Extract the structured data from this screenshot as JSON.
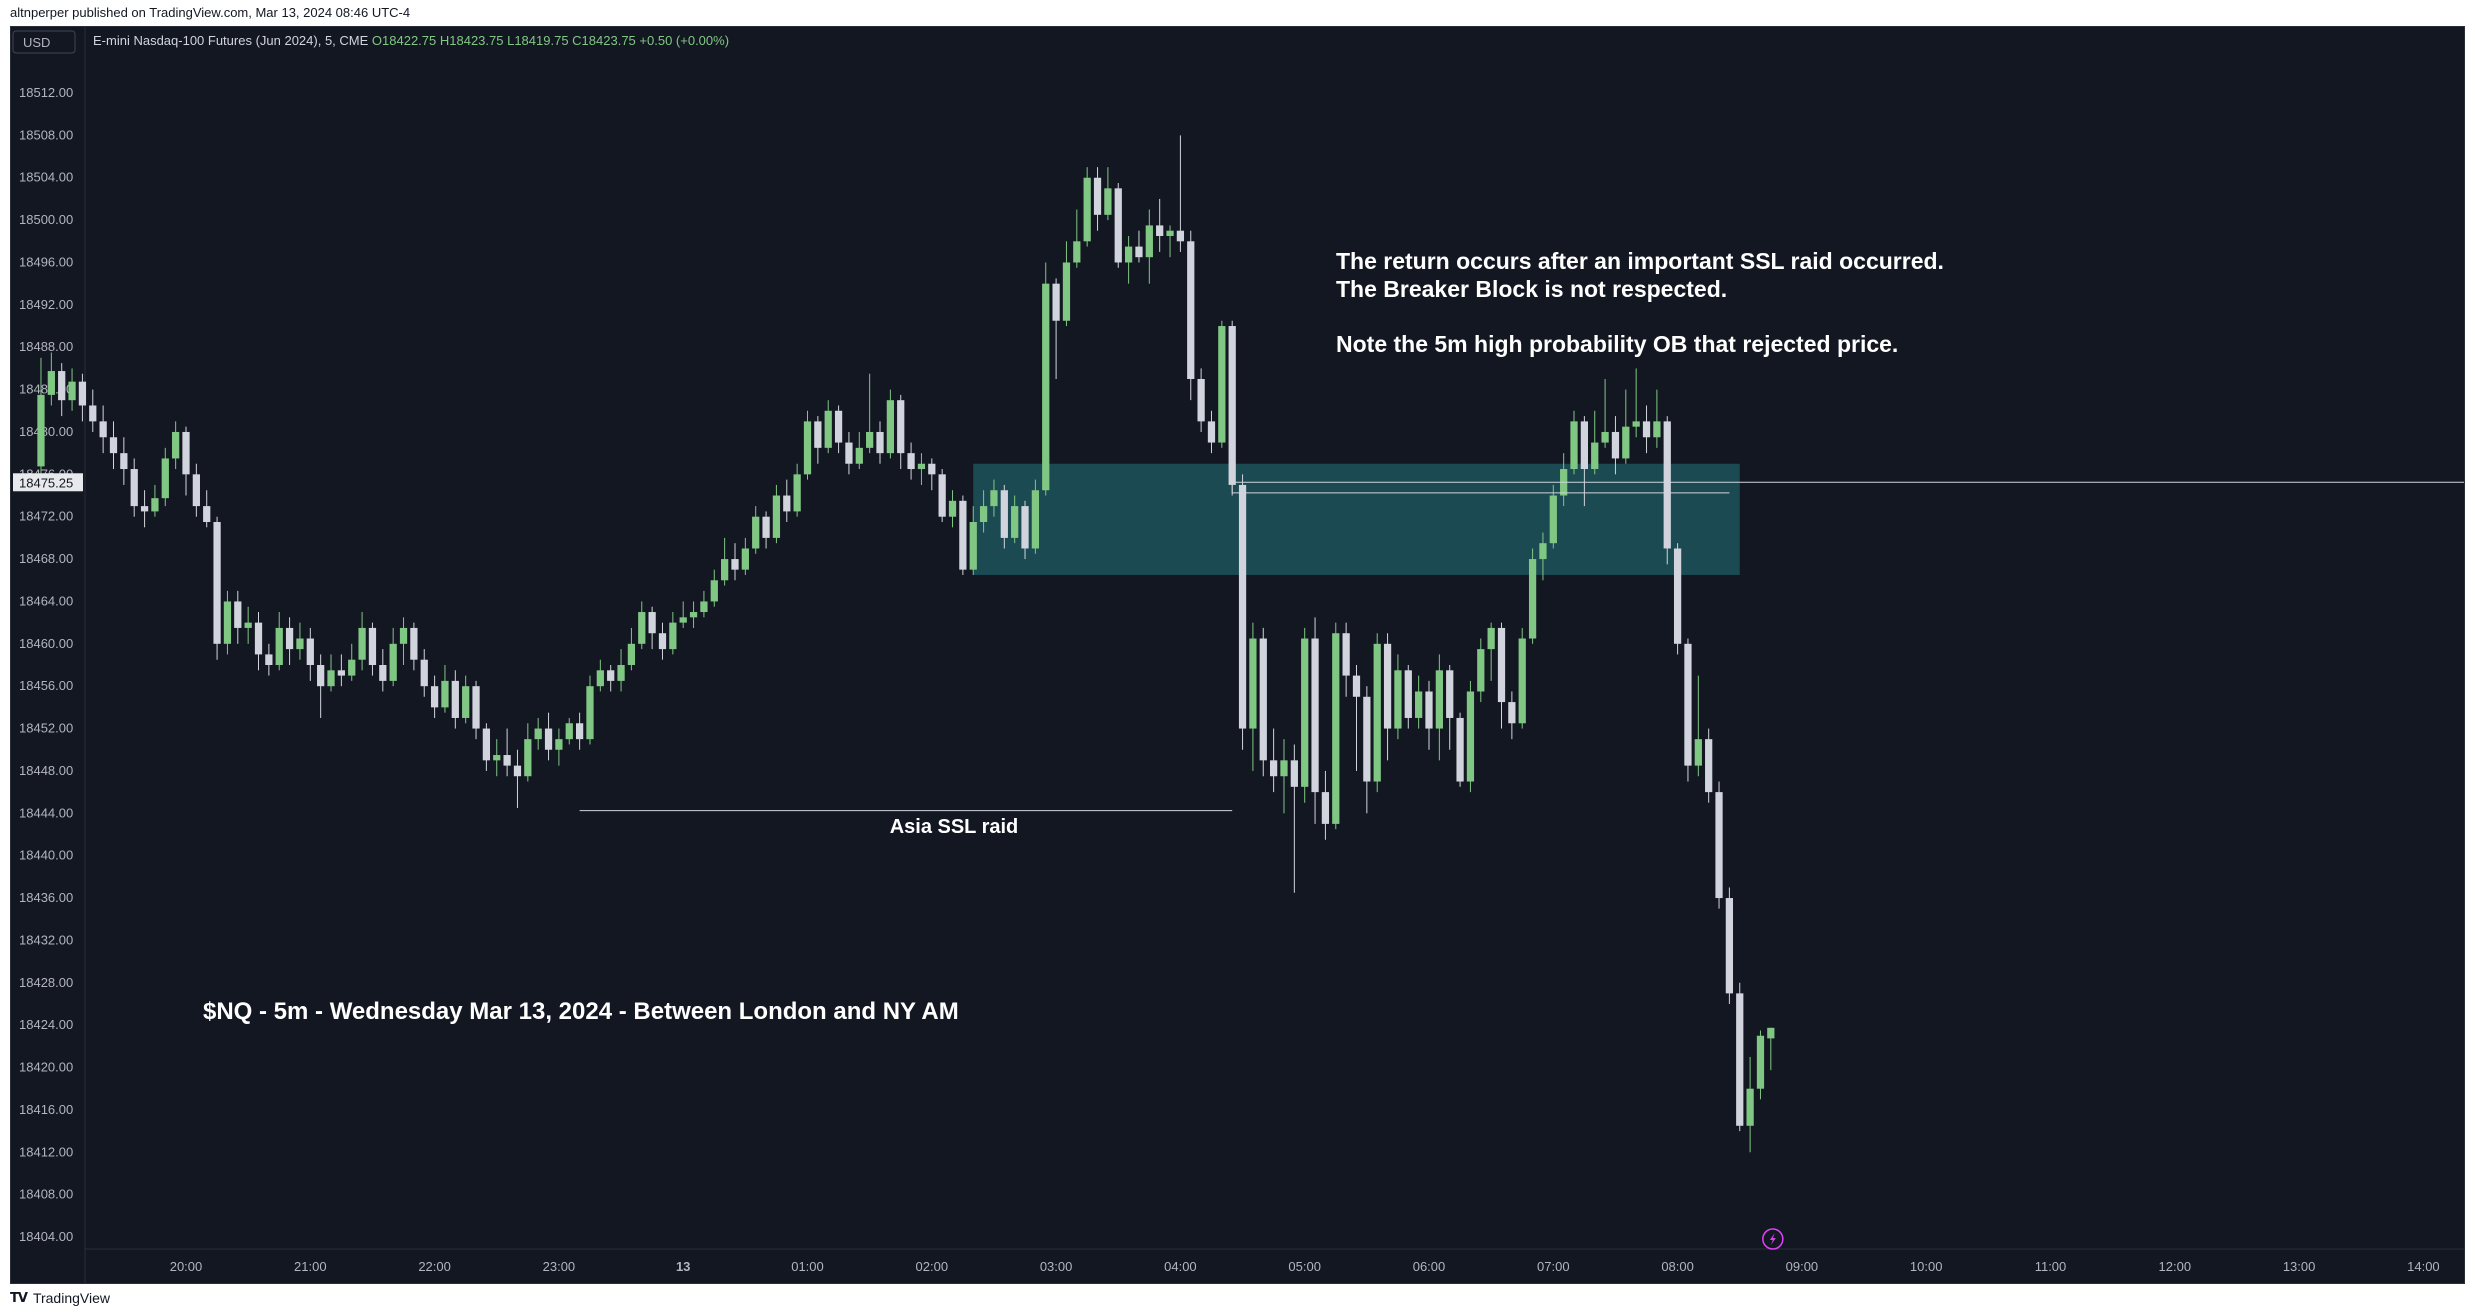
{
  "header": {
    "published_line": "altnperper published on TradingView.com, Mar 13, 2024 08:46 UTC-4"
  },
  "footer": {
    "brand": "TradingView",
    "logo_icon": "tradingview-logo-icon"
  },
  "toolbar": {
    "currency_button": "USD"
  },
  "symbol_info": {
    "name": "E-mini Nasdaq-100 Futures (Jun 2024), 5, CME",
    "open": "O18422.75",
    "high": "H18423.75",
    "low": "L18419.75",
    "close": "C18423.75",
    "change": "+0.50 (+0.00%)"
  },
  "price_label": "18475.25",
  "colors": {
    "background": "#131722",
    "bull": "#81c784",
    "bear": "#d1d4dc",
    "zone": "#1b4d56",
    "price_line": "#d1d4dc",
    "axis_text": "#b2b5be",
    "change_text": "#81c784"
  },
  "annotations": {
    "main_lines": [
      "The return occurs after an important SSL raid occurred.",
      "The Breaker Block is not respected.",
      "Note the 5m high probability OB that rejected price."
    ],
    "asia_label": "Asia SSL raid",
    "title": "$NQ - 5m - Wednesday Mar 13, 2024 - Between London and NY AM"
  },
  "chart_data": {
    "type": "candlestick",
    "instrument": "E-mini Nasdaq-100 Futures (Jun 2024)",
    "timeframe": "5",
    "ylim": [
      18402,
      18518
    ],
    "y_ticks": [
      "18512.00",
      "18508.00",
      "18504.00",
      "18500.00",
      "18496.00",
      "18492.00",
      "18488.00",
      "18484.00",
      "18480.00",
      "18476.00",
      "18472.00",
      "18468.00",
      "18464.00",
      "18460.00",
      "18456.00",
      "18452.00",
      "18448.00",
      "18444.00",
      "18440.00",
      "18436.00",
      "18432.00",
      "18428.00",
      "18424.00",
      "18420.00",
      "18416.00",
      "18412.00",
      "18408.00",
      "18404.00"
    ],
    "x_ticks": [
      "20:00",
      "21:00",
      "22:00",
      "23:00",
      "13",
      "01:00",
      "02:00",
      "03:00",
      "04:00",
      "05:00",
      "06:00",
      "07:00",
      "08:00",
      "09:00",
      "10:00",
      "11:00",
      "12:00",
      "13:00",
      "14:00"
    ],
    "candles": [
      [
        18476.75,
        18483.5,
        18487,
        18476
      ],
      [
        18483.5,
        18485.75,
        18487.5,
        18482.5
      ],
      [
        18485.75,
        18483,
        18486.5,
        18481.5
      ],
      [
        18483,
        18484.75,
        18486,
        18482
      ],
      [
        18484.75,
        18482.5,
        18485.5,
        18481
      ],
      [
        18482.5,
        18481,
        18484,
        18480
      ],
      [
        18481,
        18479.5,
        18482.5,
        18478
      ],
      [
        18479.5,
        18478,
        18481,
        18476.5
      ],
      [
        18478,
        18476.5,
        18479.5,
        18475
      ],
      [
        18476.5,
        18473,
        18477.5,
        18472
      ],
      [
        18473,
        18472.5,
        18474.5,
        18471
      ],
      [
        18472.5,
        18473.75,
        18475,
        18472
      ],
      [
        18473.75,
        18477.5,
        18478.5,
        18473
      ],
      [
        18477.5,
        18480,
        18481,
        18476.5
      ],
      [
        18480,
        18476,
        18480.5,
        18474
      ],
      [
        18476,
        18473,
        18477,
        18472
      ],
      [
        18473,
        18471.5,
        18474.5,
        18471
      ],
      [
        18471.5,
        18460,
        18472,
        18458.5
      ],
      [
        18460,
        18464,
        18465,
        18459
      ],
      [
        18464,
        18461.5,
        18465,
        18460
      ],
      [
        18461.5,
        18462,
        18463.5,
        18460
      ],
      [
        18462,
        18459,
        18463,
        18457.5
      ],
      [
        18459,
        18458,
        18460,
        18457
      ],
      [
        18458,
        18461.5,
        18463,
        18457.5
      ],
      [
        18461.5,
        18459.5,
        18462.5,
        18458
      ],
      [
        18459.5,
        18460.5,
        18462,
        18458.5
      ],
      [
        18460.5,
        18458,
        18461.5,
        18456.5
      ],
      [
        18458,
        18456,
        18459,
        18453
      ],
      [
        18456,
        18457.5,
        18459,
        18455.5
      ],
      [
        18457.5,
        18457,
        18459,
        18456
      ],
      [
        18457,
        18458.5,
        18460,
        18456.5
      ],
      [
        18458.5,
        18461.5,
        18463,
        18457.5
      ],
      [
        18461.5,
        18458,
        18462,
        18457
      ],
      [
        18458,
        18456.5,
        18459.5,
        18455.5
      ],
      [
        18456.5,
        18460,
        18461.5,
        18456
      ],
      [
        18460,
        18461.5,
        18462.5,
        18458
      ],
      [
        18461.5,
        18458.5,
        18462,
        18457.5
      ],
      [
        18458.5,
        18456,
        18459.5,
        18455
      ],
      [
        18456,
        18454,
        18457,
        18453
      ],
      [
        18454,
        18456.5,
        18458,
        18453.5
      ],
      [
        18456.5,
        18453,
        18457.5,
        18452
      ],
      [
        18453,
        18456,
        18457,
        18452.5
      ],
      [
        18456,
        18452,
        18456.5,
        18451
      ],
      [
        18452,
        18449,
        18452.5,
        18448
      ],
      [
        18449,
        18449.5,
        18451,
        18447.5
      ],
      [
        18449.5,
        18448.5,
        18452,
        18447.5
      ],
      [
        18448.5,
        18447.5,
        18450,
        18444.5
      ],
      [
        18447.5,
        18451,
        18452.5,
        18447
      ],
      [
        18451,
        18452,
        18453,
        18450
      ],
      [
        18452,
        18450,
        18453.5,
        18449
      ],
      [
        18450,
        18451,
        18452,
        18448.5
      ],
      [
        18451,
        18452.5,
        18453,
        18450.5
      ],
      [
        18452.5,
        18451,
        18453.5,
        18450
      ],
      [
        18451,
        18456,
        18457,
        18450.5
      ],
      [
        18456,
        18457.5,
        18458.5,
        18455.5
      ],
      [
        18457.5,
        18456.5,
        18458,
        18455.5
      ],
      [
        18456.5,
        18458,
        18459.5,
        18455.5
      ],
      [
        18458,
        18460,
        18461.5,
        18457.5
      ],
      [
        18460,
        18463,
        18464,
        18459.5
      ],
      [
        18463,
        18461,
        18463.5,
        18459.5
      ],
      [
        18461,
        18459.5,
        18462,
        18458.5
      ],
      [
        18459.5,
        18462,
        18463,
        18459
      ],
      [
        18462,
        18462.5,
        18464,
        18461.5
      ],
      [
        18462.5,
        18463,
        18464,
        18461.5
      ],
      [
        18463,
        18464,
        18465,
        18462.5
      ],
      [
        18464,
        18466,
        18467,
        18463.5
      ],
      [
        18466,
        18468,
        18470,
        18465.5
      ],
      [
        18468,
        18467,
        18469.5,
        18466
      ],
      [
        18467,
        18469,
        18470,
        18466.5
      ],
      [
        18469,
        18472,
        18473,
        18468.5
      ],
      [
        18472,
        18470,
        18472.5,
        18469
      ],
      [
        18470,
        18474,
        18475,
        18469.5
      ],
      [
        18474,
        18472.5,
        18475.5,
        18471.5
      ],
      [
        18472.5,
        18476,
        18477,
        18472
      ],
      [
        18476,
        18481,
        18482,
        18475.5
      ],
      [
        18481,
        18478.5,
        18481.5,
        18477
      ],
      [
        18478.5,
        18482,
        18483,
        18478
      ],
      [
        18482,
        18479,
        18482.5,
        18478
      ],
      [
        18479,
        18477,
        18480,
        18476
      ],
      [
        18477,
        18478.5,
        18480,
        18476.5
      ],
      [
        18478.5,
        18480,
        18485.5,
        18478
      ],
      [
        18480,
        18478,
        18481,
        18477
      ],
      [
        18478,
        18483,
        18484,
        18477.5
      ],
      [
        18483,
        18478,
        18483.5,
        18476.5
      ],
      [
        18478,
        18476.5,
        18479,
        18475.5
      ],
      [
        18476.5,
        18477,
        18478,
        18475
      ],
      [
        18477,
        18476,
        18477.5,
        18474.5
      ],
      [
        18476,
        18472,
        18476.5,
        18471.5
      ],
      [
        18472,
        18473.5,
        18474.5,
        18471
      ],
      [
        18473.5,
        18467,
        18474,
        18466.5
      ],
      [
        18467,
        18471.5,
        18473,
        18466.5
      ],
      [
        18471.5,
        18473,
        18474.5,
        18470.5
      ],
      [
        18473,
        18474.5,
        18475.5,
        18472
      ],
      [
        18474.5,
        18470,
        18475,
        18469
      ],
      [
        18470,
        18473,
        18474,
        18469.5
      ],
      [
        18473,
        18469,
        18473.5,
        18468
      ],
      [
        18469,
        18474.5,
        18475.5,
        18468.5
      ],
      [
        18474.5,
        18494,
        18496,
        18474
      ],
      [
        18494,
        18490.5,
        18494.5,
        18485
      ],
      [
        18490.5,
        18496,
        18498,
        18490
      ],
      [
        18496,
        18498,
        18501,
        18495.5
      ],
      [
        18498,
        18504,
        18505,
        18497.5
      ],
      [
        18504,
        18500.5,
        18505,
        18499
      ],
      [
        18500.5,
        18503,
        18505,
        18500
      ],
      [
        18503,
        18496,
        18503.5,
        18495.5
      ],
      [
        18496,
        18497.5,
        18498.5,
        18494
      ],
      [
        18497.5,
        18496.5,
        18499,
        18496
      ],
      [
        18496.5,
        18499.5,
        18501,
        18494
      ],
      [
        18499.5,
        18498.5,
        18502,
        18497
      ],
      [
        18498.5,
        18499,
        18499.5,
        18496.5
      ],
      [
        18499,
        18498,
        18508,
        18497
      ],
      [
        18498,
        18485,
        18499,
        18483
      ],
      [
        18485,
        18481,
        18486,
        18480
      ],
      [
        18481,
        18479,
        18482,
        18478
      ],
      [
        18479,
        18490,
        18490.5,
        18478.5
      ],
      [
        18490,
        18475,
        18490.5,
        18474
      ],
      [
        18475,
        18452,
        18476,
        18450
      ],
      [
        18452,
        18460.5,
        18462,
        18448
      ],
      [
        18460.5,
        18449,
        18461.5,
        18447.5
      ],
      [
        18449,
        18447.5,
        18452,
        18446
      ],
      [
        18447.5,
        18449,
        18451,
        18444
      ],
      [
        18449,
        18446.5,
        18450.5,
        18436.5
      ],
      [
        18446.5,
        18460.5,
        18461.5,
        18445
      ],
      [
        18460.5,
        18446,
        18462.5,
        18443
      ],
      [
        18446,
        18443,
        18448,
        18441.5
      ],
      [
        18443,
        18461,
        18462,
        18442.5
      ],
      [
        18461,
        18457,
        18462,
        18455
      ],
      [
        18457,
        18455,
        18458,
        18448
      ],
      [
        18455,
        18447,
        18456,
        18444
      ],
      [
        18447,
        18460,
        18461,
        18446
      ],
      [
        18460,
        18452,
        18461,
        18449
      ],
      [
        18452,
        18457.5,
        18459,
        18451
      ],
      [
        18457.5,
        18453,
        18458,
        18452
      ],
      [
        18453,
        18455.5,
        18457,
        18452
      ],
      [
        18455.5,
        18452,
        18456.5,
        18450
      ],
      [
        18452,
        18457.5,
        18459,
        18449
      ],
      [
        18457.5,
        18453,
        18458,
        18450
      ],
      [
        18453,
        18447,
        18453.5,
        18446.5
      ],
      [
        18447,
        18455.5,
        18456.5,
        18446
      ],
      [
        18455.5,
        18459.5,
        18460.5,
        18454.5
      ],
      [
        18459.5,
        18461.5,
        18462,
        18456.5
      ],
      [
        18461.5,
        18454.5,
        18462,
        18452
      ],
      [
        18454.5,
        18452.5,
        18455.5,
        18451
      ],
      [
        18452.5,
        18460.5,
        18461.5,
        18452
      ],
      [
        18460.5,
        18468,
        18469,
        18460
      ],
      [
        18468,
        18469.5,
        18470.5,
        18466
      ],
      [
        18469.5,
        18474,
        18475,
        18469
      ],
      [
        18474,
        18476.5,
        18478,
        18473
      ],
      [
        18476.5,
        18481,
        18482,
        18476
      ],
      [
        18481,
        18476.5,
        18481.5,
        18473
      ],
      [
        18476.5,
        18479,
        18482,
        18476
      ],
      [
        18479,
        18480,
        18485,
        18478.5
      ],
      [
        18480,
        18477.5,
        18481.5,
        18476
      ],
      [
        18477.5,
        18480.5,
        18484,
        18477
      ],
      [
        18480.5,
        18481,
        18486,
        18479.5
      ],
      [
        18481,
        18479.5,
        18482.5,
        18478
      ],
      [
        18479.5,
        18481,
        18484,
        18478.5
      ],
      [
        18481,
        18469,
        18481.5,
        18467.5
      ],
      [
        18469,
        18460,
        18469.5,
        18459
      ],
      [
        18460,
        18448.5,
        18460.5,
        18447
      ],
      [
        18448.5,
        18451,
        18457,
        18447.5
      ],
      [
        18451,
        18446,
        18452,
        18445
      ],
      [
        18446,
        18436,
        18447,
        18435
      ],
      [
        18436,
        18427,
        18437,
        18426
      ],
      [
        18427,
        18414.5,
        18428,
        18414
      ],
      [
        18414.5,
        18418,
        18421,
        18412
      ],
      [
        18418,
        18423,
        18423.5,
        18417
      ],
      [
        18422.75,
        18423.75,
        18423.75,
        18419.75
      ]
    ],
    "zones": [
      {
        "from_time": "02:20",
        "to_time": "08:30",
        "top": 18477,
        "bottom": 18466.5
      }
    ],
    "levels": [
      {
        "price": 18444.25,
        "from_time": "23:10",
        "to_time": "04:25",
        "label": "Asia SSL raid"
      },
      {
        "price": 18474.25,
        "from_time": "04:25",
        "to_time": "08:25"
      },
      {
        "price": 18475.25,
        "from_time": "04:25",
        "to_time": "last"
      }
    ],
    "title": "$NQ - 5m - Wednesday Mar 13, 2024 - Between London and NY AM"
  }
}
